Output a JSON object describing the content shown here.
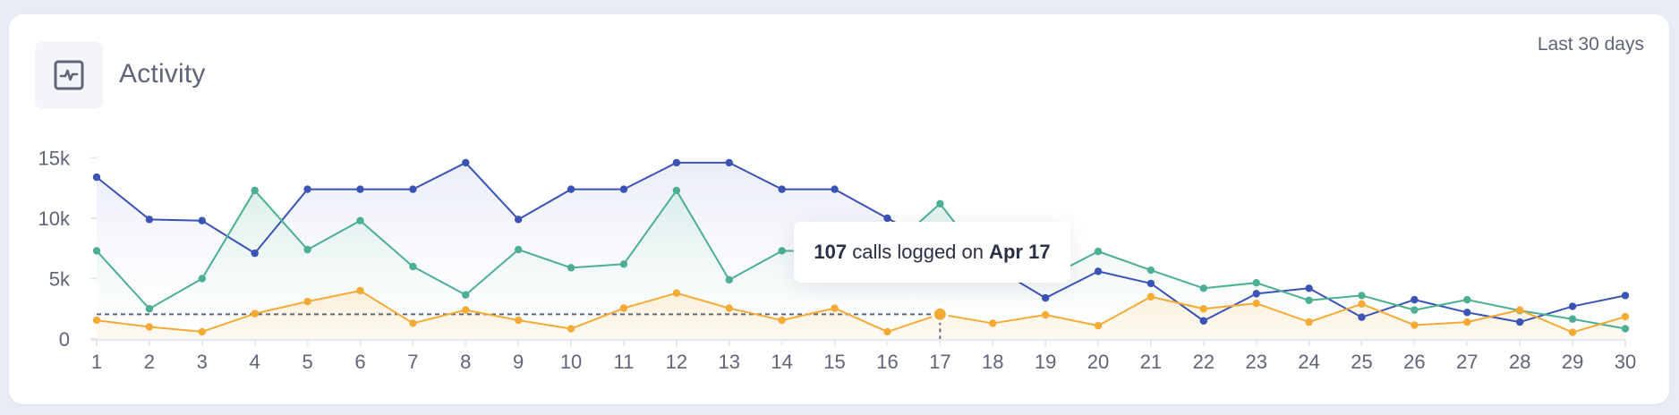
{
  "header": {
    "title": "Activity",
    "icon": "activity-pulse-icon",
    "range_label": "Last 30 days"
  },
  "tooltip": {
    "value": "107",
    "middle": " calls logged on ",
    "date": "Apr 17"
  },
  "colors": {
    "blue": "#3a53b5",
    "green": "#4caf94",
    "orange": "#f5aa35",
    "axis_text": "#5f6478",
    "reference_line": "#5f6478"
  },
  "chart_data": {
    "type": "area",
    "title": "Activity",
    "subtitle": "Last 30 days",
    "xlabel": "",
    "ylabel": "",
    "x": [
      1,
      2,
      3,
      4,
      5,
      6,
      7,
      8,
      9,
      10,
      11,
      12,
      13,
      14,
      15,
      16,
      17,
      18,
      19,
      20,
      21,
      22,
      23,
      24,
      25,
      26,
      27,
      28,
      29,
      30
    ],
    "yticks": [
      0,
      5000,
      10000,
      15000
    ],
    "ytick_labels": [
      "0",
      "5k",
      "10k",
      "15k"
    ],
    "ylim": [
      0,
      15000
    ],
    "grid": false,
    "legend": null,
    "series": [
      {
        "name": "blue",
        "color": "#3a53b5",
        "values": [
          13400,
          9900,
          9800,
          7100,
          12400,
          12400,
          12400,
          14600,
          9900,
          12400,
          12400,
          14600,
          14600,
          12400,
          12400,
          10000,
          7700,
          6000,
          3400,
          5600,
          4600,
          1500,
          3750,
          4200,
          1800,
          3250,
          2200,
          1400,
          2700,
          3600
        ]
      },
      {
        "name": "green",
        "color": "#4caf94",
        "values": [
          7300,
          2500,
          5000,
          12300,
          7400,
          9800,
          6000,
          3650,
          7400,
          5900,
          6200,
          12300,
          4900,
          7300,
          7300,
          7300,
          11200,
          5600,
          5000,
          7250,
          5700,
          4200,
          4650,
          3200,
          3600,
          2400,
          3250,
          2350,
          1650,
          850
        ]
      },
      {
        "name": "orange",
        "color": "#f5aa35",
        "values": [
          1550,
          1000,
          600,
          2100,
          3100,
          4000,
          1300,
          2400,
          1550,
          850,
          2550,
          3800,
          2550,
          1550,
          2550,
          600,
          2050,
          1300,
          2000,
          1100,
          3500,
          2500,
          2950,
          1400,
          2900,
          1150,
          1400,
          2400,
          550,
          1850
        ]
      }
    ],
    "annotations": [
      {
        "type": "highlight_point",
        "series": "orange",
        "x": 17,
        "y": 2050
      },
      {
        "type": "dashed_hline",
        "y": 2050,
        "from_x": 1,
        "to_x": 17
      },
      {
        "type": "dashed_vline",
        "x": 17
      },
      {
        "type": "tooltip",
        "text": "107 calls logged on Apr 17"
      }
    ]
  }
}
